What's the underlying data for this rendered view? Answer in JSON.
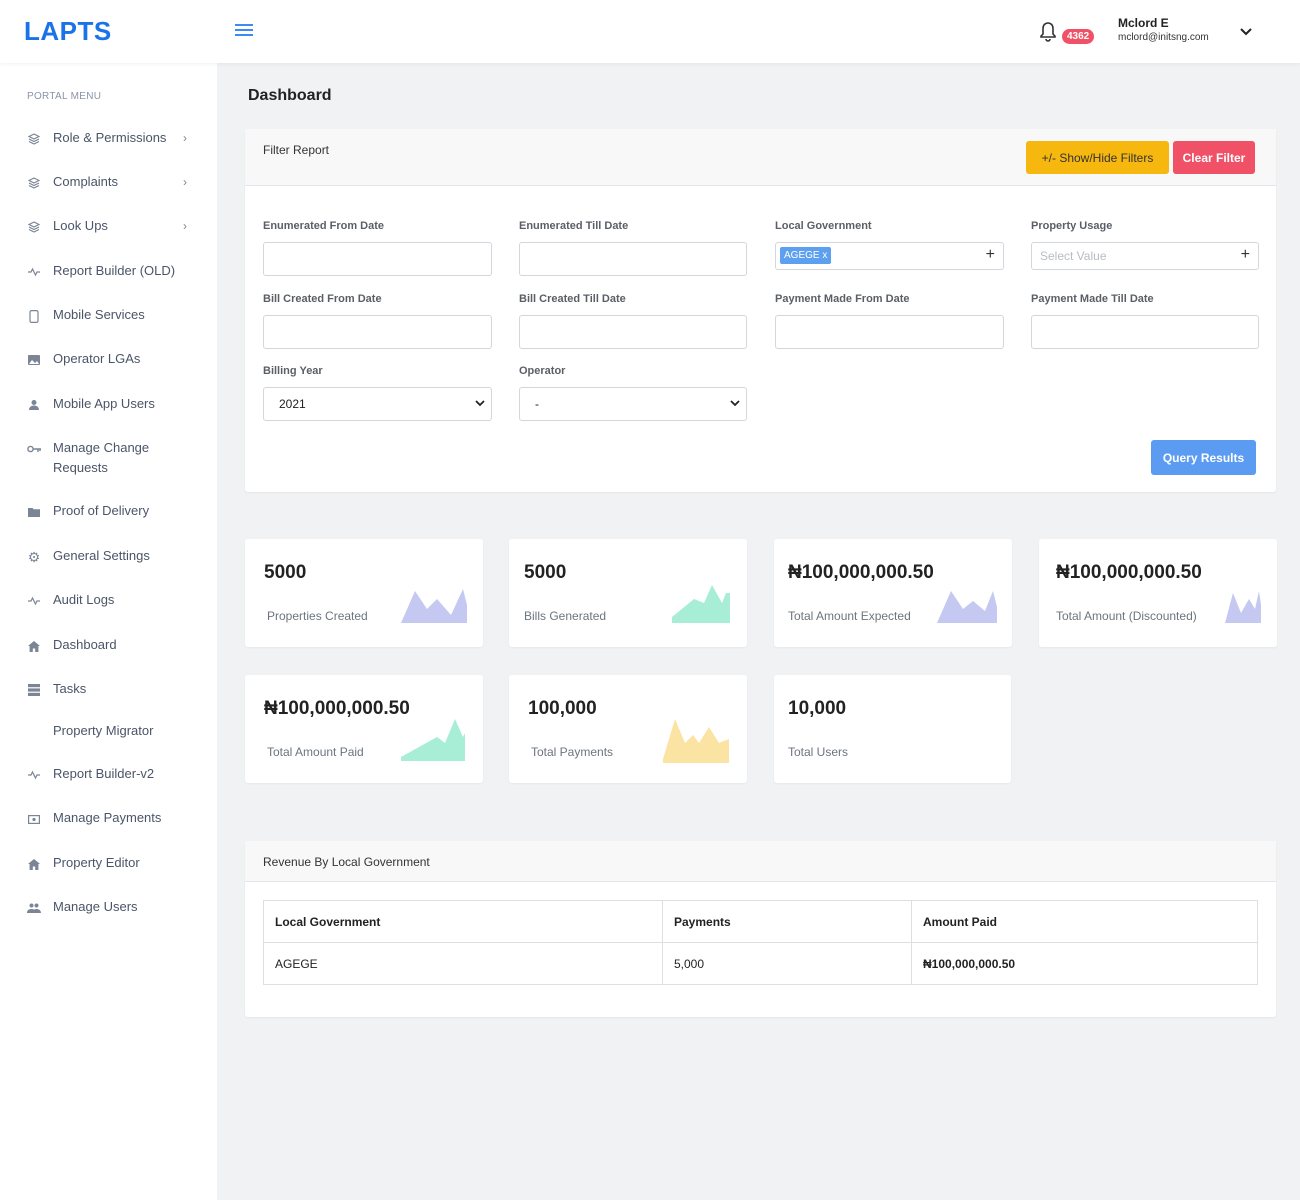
{
  "app": {
    "logo": "LAPTS"
  },
  "header": {
    "notification_count": "4362",
    "user_name": "Mclord E",
    "user_email": "mclord@initsng.com"
  },
  "sidebar": {
    "title": "PORTAL MENU",
    "items": [
      {
        "label": "Role & Permissions",
        "icon": "layers-icon",
        "has_children": true
      },
      {
        "label": "Complaints",
        "icon": "layers-icon",
        "has_children": true
      },
      {
        "label": "Look Ups",
        "icon": "layers-icon",
        "has_children": true
      },
      {
        "label": "Report Builder (OLD)",
        "icon": "activity-icon"
      },
      {
        "label": "Mobile Services",
        "icon": "phone-icon"
      },
      {
        "label": "Operator LGAs",
        "icon": "image-icon"
      },
      {
        "label": "Mobile App Users",
        "icon": "person-icon"
      },
      {
        "label": "Manage Change Requests",
        "icon": "key-icon"
      },
      {
        "label": "Proof of Delivery",
        "icon": "folder-icon"
      },
      {
        "label": "General Settings",
        "icon": "gear-icon"
      },
      {
        "label": "Audit Logs",
        "icon": "activity-icon"
      },
      {
        "label": "Dashboard",
        "icon": "home-icon"
      },
      {
        "label": "Tasks",
        "icon": "storage-icon"
      },
      {
        "label": "Property Migrator",
        "icon": ""
      },
      {
        "label": "Report Builder-v2",
        "icon": "activity-icon"
      },
      {
        "label": "Manage Payments",
        "icon": "money-icon"
      },
      {
        "label": "Property Editor",
        "icon": "home-icon"
      },
      {
        "label": "Manage Users",
        "icon": "people-icon"
      }
    ]
  },
  "page": {
    "title": "Dashboard"
  },
  "filter": {
    "title": "Filter Report",
    "show_hide_label": "+/- Show/Hide Filters",
    "clear_label": "Clear Filter",
    "fields": {
      "enum_from": "Enumerated From Date",
      "enum_till": "Enumerated Till Date",
      "local_gov": "Local Government",
      "property_usage": "Property Usage",
      "bill_from": "Bill Created From Date",
      "bill_till": "Bill Created Till Date",
      "pay_from": "Payment Made From Date",
      "pay_till": "Payment Made Till Date",
      "billing_year": "Billing Year",
      "operator": "Operator"
    },
    "local_gov_tag": "AGEGE",
    "property_usage_placeholder": "Select Value",
    "billing_year_value": "2021",
    "operator_value": "-",
    "query_label": "Query Results"
  },
  "stats": [
    {
      "value": "5000",
      "label": "Properties Created",
      "color": "#c5c8f0"
    },
    {
      "value": "5000",
      "label": "Bills Generated",
      "color": "#a8eed6"
    },
    {
      "value": "₦100,000,000.50",
      "label": "Total Amount Expected",
      "color": "#c5c8f0"
    },
    {
      "value": "₦100,000,000.50",
      "label": "Total Amount (Discounted)",
      "color": "#c5c8f0"
    },
    {
      "value": "₦100,000,000.50",
      "label": "Total Amount Paid",
      "color": "#a8eed6"
    },
    {
      "value": "100,000",
      "label": "Total Payments",
      "color": "#fbe3a3"
    },
    {
      "value": "10,000",
      "label": "Total Users"
    }
  ],
  "revenue": {
    "title": "Revenue By Local Government",
    "columns": [
      "Local Government",
      "Payments",
      "Amount Paid"
    ],
    "rows": [
      [
        "AGEGE",
        "5,000",
        "₦100,000,000.50"
      ]
    ]
  }
}
